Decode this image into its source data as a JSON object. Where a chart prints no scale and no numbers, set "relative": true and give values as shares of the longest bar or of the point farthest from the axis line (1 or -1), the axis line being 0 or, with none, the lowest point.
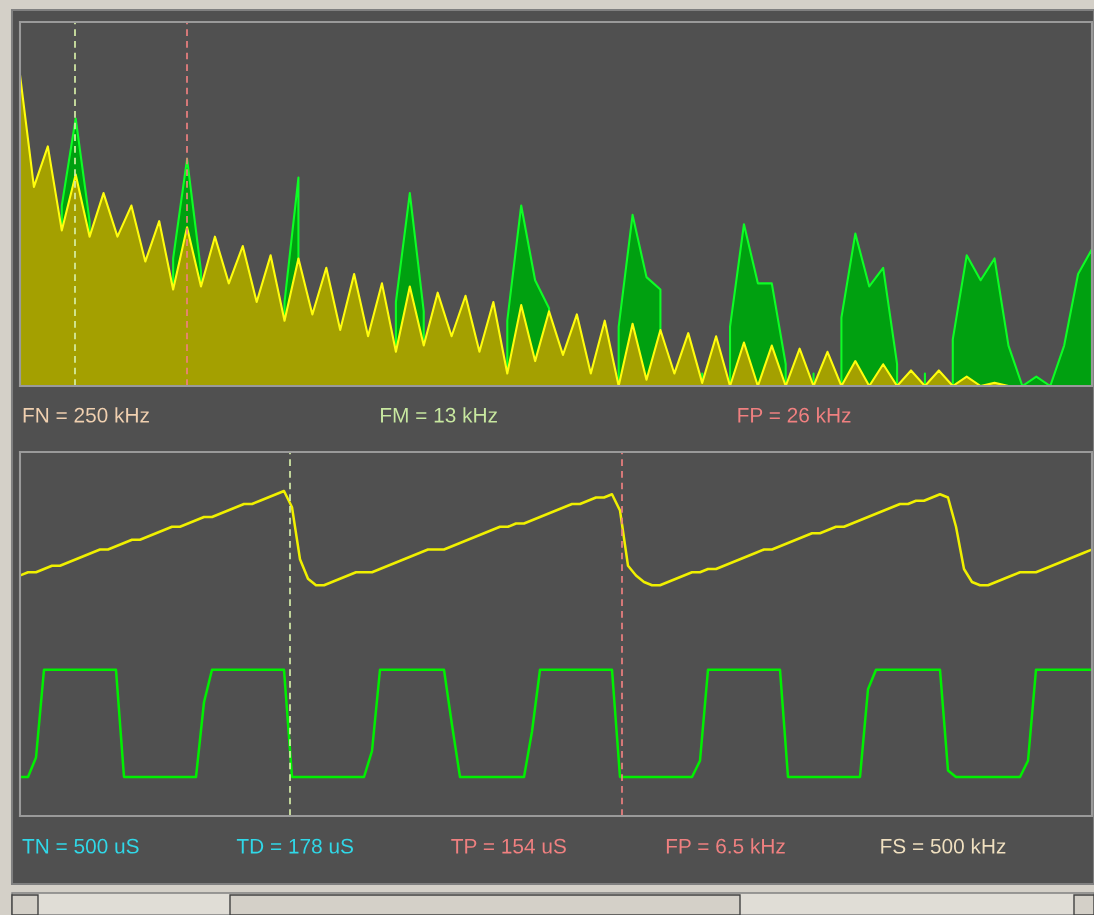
{
  "chart_data": [
    {
      "type": "area",
      "relative": true,
      "grid": false,
      "legend": false,
      "categories": [
        null,
        null,
        null,
        null,
        null,
        null,
        null,
        null,
        null,
        null,
        null,
        null,
        null,
        null,
        null,
        null,
        null,
        null,
        null,
        null,
        null,
        null,
        null,
        null,
        null,
        null,
        null,
        null,
        null,
        null,
        null,
        null,
        null,
        null,
        null,
        null,
        null,
        null,
        null,
        null,
        null,
        null,
        null,
        null,
        null,
        null,
        null,
        null,
        null,
        null,
        null,
        null,
        null,
        null,
        null,
        null,
        null,
        null,
        null,
        null,
        null,
        null,
        null,
        null,
        null,
        null,
        null,
        null,
        null,
        null,
        null,
        null,
        null,
        null,
        null,
        null,
        null,
        null
      ],
      "series": [
        {
          "color": "#00a010",
          "values": [
            null,
            null,
            null,
            0.58,
            0.86,
            0.53,
            null,
            null,
            null,
            null,
            null,
            0.41,
            0.73,
            0.37,
            null,
            null,
            null,
            null,
            null,
            0.27,
            0.67,
            null,
            null,
            null,
            null,
            null,
            null,
            0.27,
            0.62,
            0.24,
            null,
            null,
            null,
            null,
            null,
            0.21,
            0.58,
            0.34,
            0.25,
            null,
            null,
            null,
            null,
            0.19,
            0.55,
            0.35,
            0.31,
            null,
            null,
            0.04,
            null,
            0.19,
            0.52,
            0.33,
            0.33,
            0.07,
            null,
            0.04,
            null,
            0.22,
            0.49,
            0.32,
            0.38,
            0.07,
            null,
            0.04,
            null,
            0.15,
            0.42,
            0.34,
            0.41,
            0.13,
            0.0,
            0.03,
            0.0,
            0.13,
            0.36,
            0.44
          ]
        },
        {
          "color": "#a4a000",
          "values": [
            1.0,
            0.64,
            0.77,
            0.5,
            0.68,
            0.48,
            0.62,
            0.48,
            0.58,
            0.4,
            0.53,
            0.31,
            0.51,
            0.32,
            0.48,
            0.33,
            0.45,
            0.27,
            0.42,
            0.21,
            0.41,
            0.23,
            0.38,
            0.18,
            0.36,
            0.16,
            0.33,
            0.11,
            0.32,
            0.13,
            0.3,
            0.16,
            0.29,
            0.11,
            0.27,
            0.04,
            0.26,
            0.08,
            0.24,
            0.1,
            0.23,
            0.04,
            0.21,
            0.0,
            0.2,
            0.02,
            0.18,
            0.04,
            0.17,
            0.01,
            0.16,
            0.0,
            0.14,
            0.0,
            0.13,
            0.0,
            0.12,
            0.0,
            0.11,
            0.0,
            0.08,
            0.0,
            0.07,
            0.0,
            0.05,
            0.0,
            0.05,
            0.0,
            0.03,
            0.0,
            0.01,
            0.0,
            0.0,
            0.0,
            0.0,
            0.0,
            0.0,
            0.0
          ]
        }
      ],
      "annotations": [
        "FN = 250 kHz",
        "FM = 13 kHz",
        "FP = 26 kHz"
      ]
    },
    {
      "type": "line",
      "relative": true,
      "grid": false,
      "legend": false,
      "marker": "none",
      "line_style": "solid",
      "categories": [
        null,
        null,
        null,
        null,
        null,
        null,
        null,
        null,
        null,
        null,
        null,
        null,
        null,
        null,
        null,
        null,
        null,
        null,
        null,
        null,
        null,
        null,
        null,
        null,
        null,
        null,
        null,
        null,
        null,
        null,
        null,
        null,
        null,
        null,
        null,
        null,
        null,
        null,
        null,
        null,
        null,
        null,
        null,
        null,
        null,
        null,
        null,
        null,
        null,
        null,
        null,
        null,
        null,
        null,
        null,
        null,
        null,
        null,
        null,
        null,
        null,
        null,
        null,
        null,
        null,
        null,
        null,
        null,
        null,
        null,
        null,
        null,
        null,
        null,
        null,
        null,
        null,
        null,
        null,
        null,
        null,
        null,
        null,
        null,
        null,
        null,
        null,
        null,
        null,
        null,
        null,
        null,
        null,
        null,
        null,
        null,
        null,
        null,
        null,
        null,
        null,
        null,
        null,
        null,
        null,
        null,
        null,
        null,
        null,
        null,
        null,
        null,
        null,
        null,
        null,
        null,
        null,
        null,
        null,
        null,
        null,
        null,
        null,
        null,
        null,
        null,
        null,
        null,
        null,
        null,
        null,
        null,
        null,
        null,
        null
      ],
      "series": [
        {
          "color": "#f0f000",
          "values": [
            0.74,
            0.75,
            0.75,
            0.76,
            0.77,
            0.77,
            0.78,
            0.79,
            0.8,
            0.81,
            0.82,
            0.82,
            0.83,
            0.84,
            0.85,
            0.85,
            0.86,
            0.87,
            0.88,
            0.89,
            0.89,
            0.9,
            0.91,
            0.92,
            0.92,
            0.93,
            0.94,
            0.95,
            0.96,
            0.96,
            0.97,
            0.98,
            0.99,
            1.0,
            0.95,
            0.79,
            0.73,
            0.71,
            0.71,
            0.72,
            0.73,
            0.74,
            0.75,
            0.75,
            0.75,
            0.76,
            0.77,
            0.78,
            0.79,
            0.8,
            0.81,
            0.82,
            0.82,
            0.82,
            0.83,
            0.84,
            0.85,
            0.86,
            0.87,
            0.88,
            0.89,
            0.89,
            0.9,
            0.9,
            0.91,
            0.92,
            0.93,
            0.94,
            0.95,
            0.96,
            0.96,
            0.97,
            0.98,
            0.98,
            0.99,
            0.94,
            0.77,
            0.74,
            0.72,
            0.71,
            0.71,
            0.72,
            0.73,
            0.74,
            0.75,
            0.75,
            0.76,
            0.76,
            0.77,
            0.78,
            0.79,
            0.8,
            0.81,
            0.82,
            0.82,
            0.83,
            0.84,
            0.85,
            0.86,
            0.87,
            0.87,
            0.88,
            0.89,
            0.89,
            0.9,
            0.91,
            0.92,
            0.93,
            0.94,
            0.95,
            0.96,
            0.96,
            0.97,
            0.97,
            0.98,
            0.99,
            0.98,
            0.89,
            0.76,
            0.72,
            0.71,
            0.71,
            0.72,
            0.73,
            0.74,
            0.75,
            0.75,
            0.75,
            0.76,
            0.77,
            0.78,
            0.79,
            0.8,
            0.81,
            0.82
          ]
        },
        {
          "color": "#00f000",
          "values": [
            0.12,
            0.12,
            0.18,
            0.45,
            0.45,
            0.45,
            0.45,
            0.45,
            0.45,
            0.45,
            0.45,
            0.45,
            0.45,
            0.12,
            0.12,
            0.12,
            0.12,
            0.12,
            0.12,
            0.12,
            0.12,
            0.12,
            0.12,
            0.35,
            0.45,
            0.45,
            0.45,
            0.45,
            0.45,
            0.45,
            0.45,
            0.45,
            0.45,
            0.45,
            0.12,
            0.12,
            0.12,
            0.12,
            0.12,
            0.12,
            0.12,
            0.12,
            0.12,
            0.12,
            0.2,
            0.45,
            0.45,
            0.45,
            0.45,
            0.45,
            0.45,
            0.45,
            0.45,
            0.45,
            0.28,
            0.12,
            0.12,
            0.12,
            0.12,
            0.12,
            0.12,
            0.12,
            0.12,
            0.12,
            0.26,
            0.45,
            0.45,
            0.45,
            0.45,
            0.45,
            0.45,
            0.45,
            0.45,
            0.45,
            0.45,
            0.12,
            0.12,
            0.12,
            0.12,
            0.12,
            0.12,
            0.12,
            0.12,
            0.12,
            0.12,
            0.17,
            0.45,
            0.45,
            0.45,
            0.45,
            0.45,
            0.45,
            0.45,
            0.45,
            0.45,
            0.45,
            0.12,
            0.12,
            0.12,
            0.12,
            0.12,
            0.12,
            0.12,
            0.12,
            0.12,
            0.12,
            0.39,
            0.45,
            0.45,
            0.45,
            0.45,
            0.45,
            0.45,
            0.45,
            0.45,
            0.45,
            0.14,
            0.12,
            0.12,
            0.12,
            0.12,
            0.12,
            0.12,
            0.12,
            0.12,
            0.12,
            0.17,
            0.45,
            0.45,
            0.45,
            0.45,
            0.45,
            0.45,
            0.45,
            0.45
          ]
        }
      ],
      "annotations": [
        "TN = 500 uS",
        "TD = 178 uS",
        "TP = 154 uS",
        "FP = 6.5 kHz",
        "FS = 500 kHz"
      ]
    }
  ]
}
